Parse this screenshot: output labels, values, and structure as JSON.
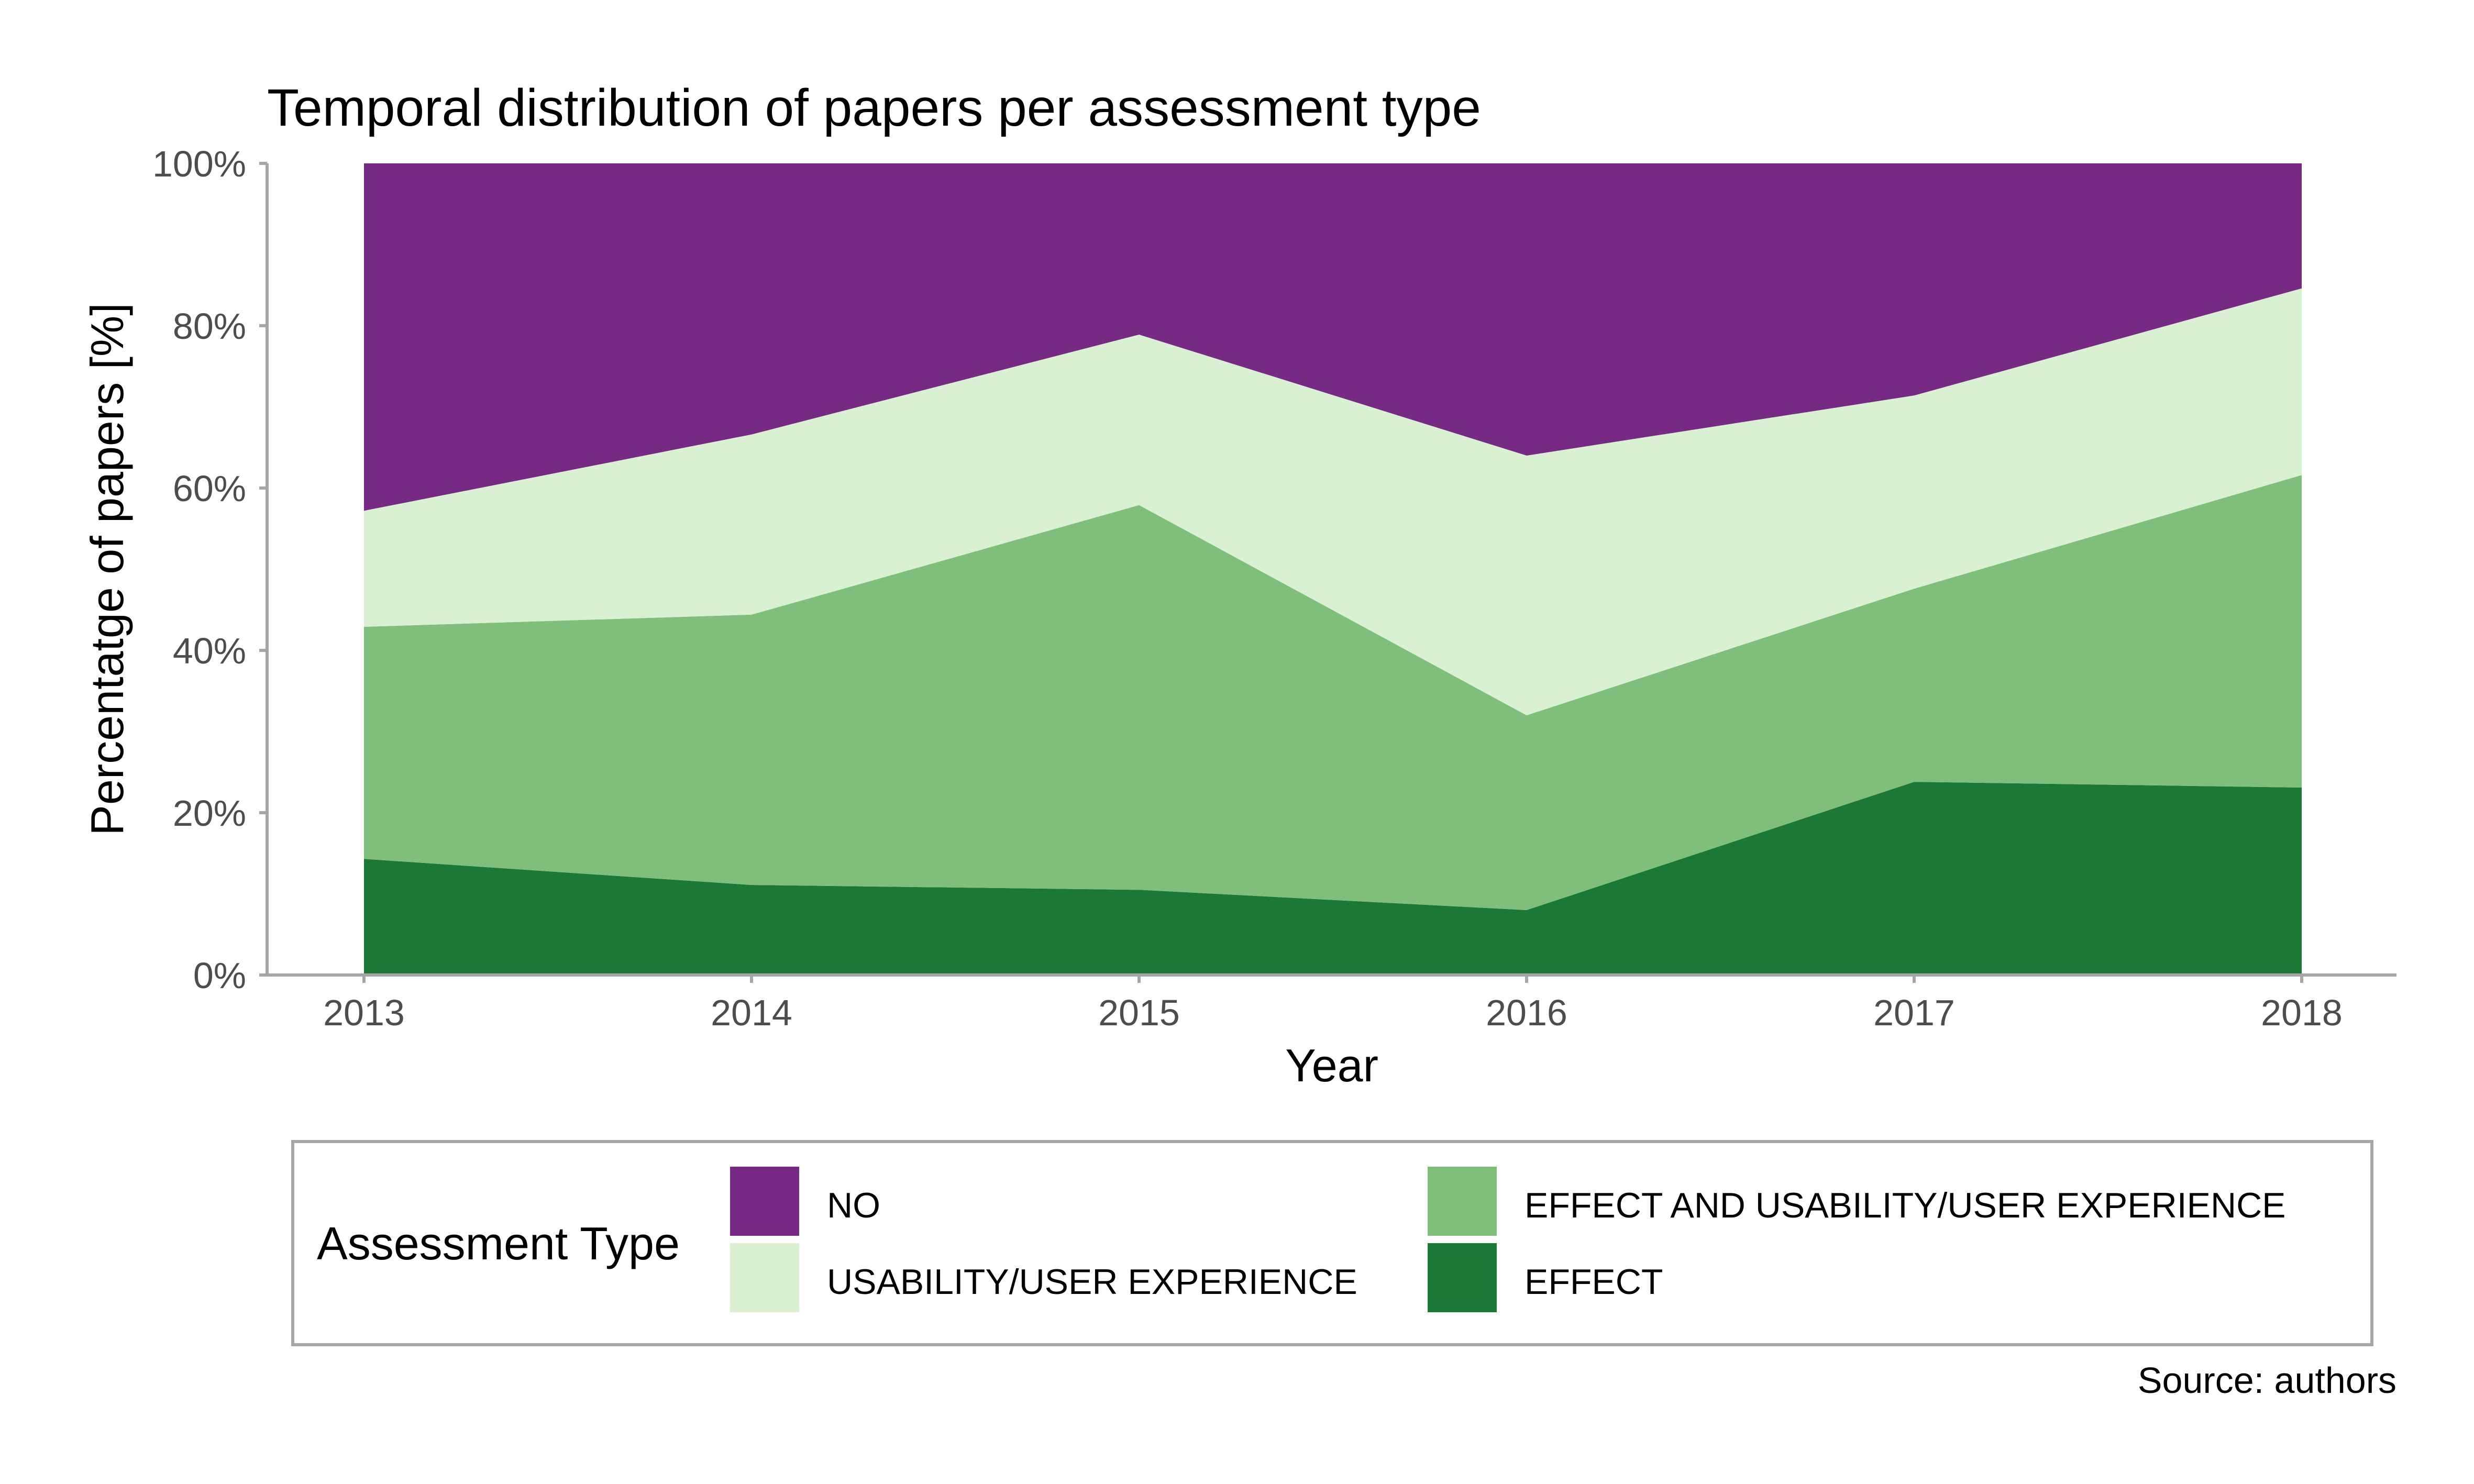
{
  "chart_data": {
    "type": "area",
    "stacked": true,
    "normalized_percent": true,
    "title": "Temporal distribution of papers per assessment type",
    "xlabel": "Year",
    "ylabel": "Percentatge of papers [%]",
    "caption": "Source: authors",
    "x": [
      2013,
      2014,
      2015,
      2016,
      2017,
      2018
    ],
    "x_tick_labels": [
      "2013",
      "2014",
      "2015",
      "2016",
      "2017",
      "2018"
    ],
    "ylim": [
      0,
      100
    ],
    "y_ticks": [
      0,
      20,
      40,
      60,
      80,
      100
    ],
    "y_tick_labels": [
      "0%",
      "20%",
      "40%",
      "60%",
      "80%",
      "100%"
    ],
    "grid": false,
    "legend": {
      "title": "Assessment Type",
      "position": "bottom",
      "order": [
        "NO",
        "USABILITY/USER EXPERIENCE",
        "EFFECT AND USABILITY/USER EXPERIENCE",
        "EFFECT"
      ]
    },
    "series": [
      {
        "name": "EFFECT",
        "color": "#1b7837",
        "values": [
          14.3,
          11.1,
          10.5,
          8.0,
          23.8,
          23.1
        ]
      },
      {
        "name": "EFFECT AND USABILITY/USER EXPERIENCE",
        "color": "#7fbf7b",
        "values": [
          28.6,
          33.3,
          47.4,
          24.0,
          23.8,
          38.5
        ]
      },
      {
        "name": "USABILITY/USER EXPERIENCE",
        "color": "#d9f0d3",
        "values": [
          14.3,
          22.2,
          21.0,
          32.0,
          23.8,
          23.0
        ]
      },
      {
        "name": "NO",
        "color": "#762a83",
        "values": [
          42.8,
          33.4,
          21.1,
          36.0,
          28.6,
          15.4
        ]
      }
    ]
  }
}
